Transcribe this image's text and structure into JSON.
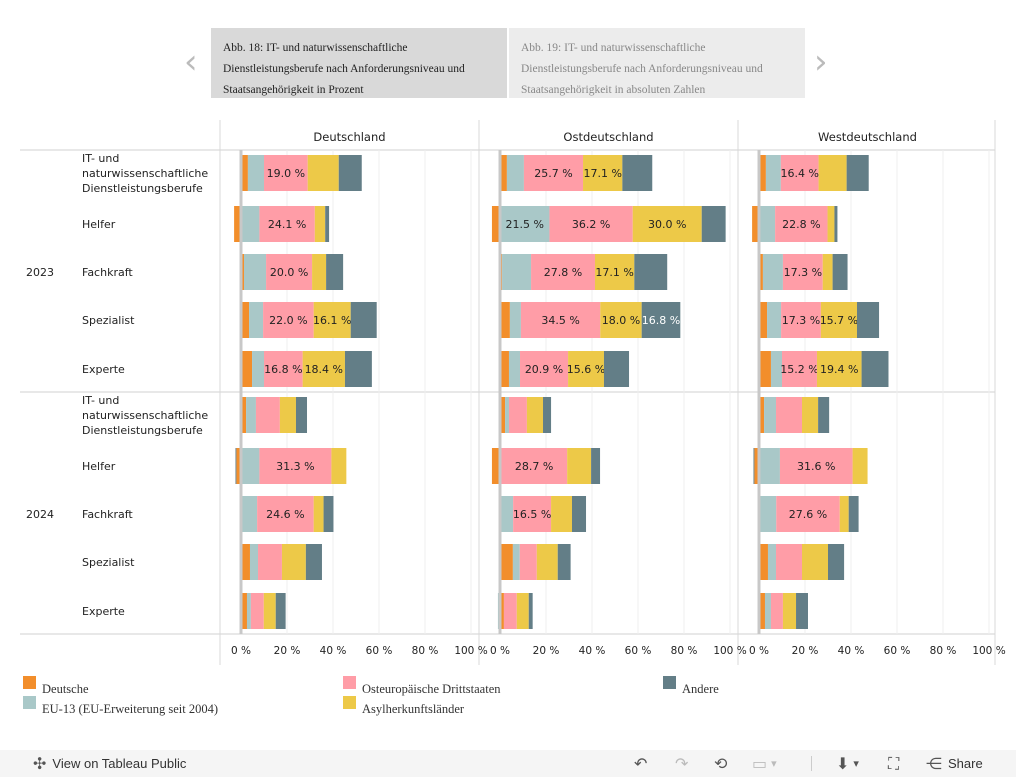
{
  "carousel": {
    "prev_icon": "‹",
    "next_icon": "›",
    "cards": [
      {
        "text": "Abb. 18: IT- und naturwissenschaftliche Dienstleistungsberufe nach Anforderungsniveau und Staatsangehörigkeit in Prozent"
      },
      {
        "text": "Abb. 19: IT- und naturwissenschaftliche Dienstleistungsberufe nach Anforderungsniveau und Staatsangehörigkeit in absoluten Zahlen"
      }
    ]
  },
  "colors": {
    "Deutsche": "#F28E2B",
    "EU-13 (EU-Erweiterung seit 2004)": "#A9C8C8",
    "Osteuropäische Drittstaaten": "#FF9DA7",
    "Asylherkunftsländer": "#EDC948",
    "Andere": "#637E87"
  },
  "legend": [
    {
      "label": "Deutsche",
      "key": "Deutsche"
    },
    {
      "label": "EU-13 (EU-Erweiterung seit 2004)",
      "key": "EU-13 (EU-Erweiterung seit 2004)"
    },
    {
      "label": "Osteuropäische Drittstaaten",
      "key": "Osteuropäische Drittstaaten"
    },
    {
      "label": "Asylherkunftsländer",
      "key": "Asylherkunftsländer"
    },
    {
      "label": "Andere",
      "key": "Andere"
    }
  ],
  "chart_data": {
    "type": "bar",
    "orientation": "horizontal-stacked-diverging",
    "title": "",
    "panels": [
      "Deutschland",
      "Ostdeutschland",
      "Westdeutschland"
    ],
    "years": [
      "2023",
      "2024"
    ],
    "categories": [
      "IT- und naturwissenschaftliche Dienstleistungsberufe",
      "Helfer",
      "Fachkraft",
      "Spezialist",
      "Experte"
    ],
    "series_order": [
      "Deutsche",
      "EU-13 (EU-Erweiterung seit 2004)",
      "Osteuropäische Drittstaaten",
      "Asylherkunftsländer",
      "Andere"
    ],
    "x_ticks": [
      "0 %",
      "20 %",
      "40 %",
      "60 %",
      "80 %",
      "100 %"
    ],
    "xlim": [
      -10,
      100
    ],
    "label_threshold": 15,
    "values": {
      "Deutschland": {
        "2023": [
          [
            3.0,
            7.0,
            19.0,
            13.5,
            10.0
          ],
          [
            -3.0,
            8.0,
            24.1,
            4.5,
            1.7
          ],
          [
            1.3,
            9.6,
            20.0,
            6.1,
            7.4
          ],
          [
            3.5,
            6.1,
            22.0,
            16.1,
            11.3
          ],
          [
            4.8,
            5.2,
            16.8,
            18.4,
            11.7
          ]
        ],
        "2024": [
          [
            2.2,
            4.3,
            10.4,
            7.0,
            4.8
          ],
          [
            -2.0,
            8.0,
            31.3,
            6.5,
            -0.4
          ],
          [
            0.5,
            6.5,
            24.6,
            4.3,
            4.3
          ],
          [
            3.9,
            3.5,
            10.4,
            10.4,
            7.0
          ],
          [
            2.6,
            1.7,
            5.6,
            5.2,
            4.3
          ]
        ]
      },
      "Ostdeutschland": {
        "2023": [
          [
            3.0,
            7.4,
            25.7,
            17.1,
            13.0
          ],
          [
            -3.5,
            21.5,
            36.2,
            30.0,
            10.4
          ],
          [
            0.9,
            12.6,
            27.8,
            17.1,
            14.3
          ],
          [
            4.3,
            4.8,
            34.5,
            18.0,
            16.8
          ],
          [
            3.9,
            4.8,
            20.9,
            15.6,
            10.9
          ]
        ],
        "2024": [
          [
            2.2,
            1.7,
            7.8,
            7.0,
            3.5
          ],
          [
            -3.5,
            0.5,
            28.7,
            10.4,
            3.9
          ],
          [
            0.5,
            5.2,
            16.5,
            9.1,
            6.1
          ],
          [
            5.6,
            3.0,
            7.4,
            9.1,
            5.6
          ],
          [
            1.7,
            -0.9,
            5.6,
            5.2,
            1.7
          ]
        ]
      },
      "Westdeutschland": {
        "2023": [
          [
            3.0,
            6.5,
            16.4,
            12.2,
            9.6
          ],
          [
            -3.0,
            7.0,
            22.8,
            3.0,
            1.3
          ],
          [
            1.7,
            8.7,
            17.3,
            4.3,
            6.5
          ],
          [
            3.5,
            6.1,
            17.3,
            15.7,
            9.6
          ],
          [
            5.2,
            4.8,
            15.2,
            19.4,
            11.7
          ]
        ],
        "2024": [
          [
            2.2,
            5.2,
            11.3,
            7.0,
            4.8
          ],
          [
            -2.0,
            9.1,
            31.6,
            6.5,
            -0.4
          ],
          [
            0.5,
            7.0,
            27.6,
            3.9,
            4.3
          ],
          [
            3.9,
            3.5,
            11.3,
            11.3,
            7.0
          ],
          [
            2.6,
            2.6,
            5.2,
            5.7,
            5.2
          ]
        ]
      }
    }
  },
  "footer": {
    "view_label": "View on Tableau Public",
    "share_label": "Share",
    "undo_icon": "↶",
    "redo_icon": "↷",
    "revert_icon": "⟲",
    "pause_icon": "▭",
    "download_icon": "⬇",
    "fullscreen_icon": "⛶",
    "share_icon": "⋲",
    "dropdown_icon": "▾",
    "tableau_icon": "✣"
  }
}
